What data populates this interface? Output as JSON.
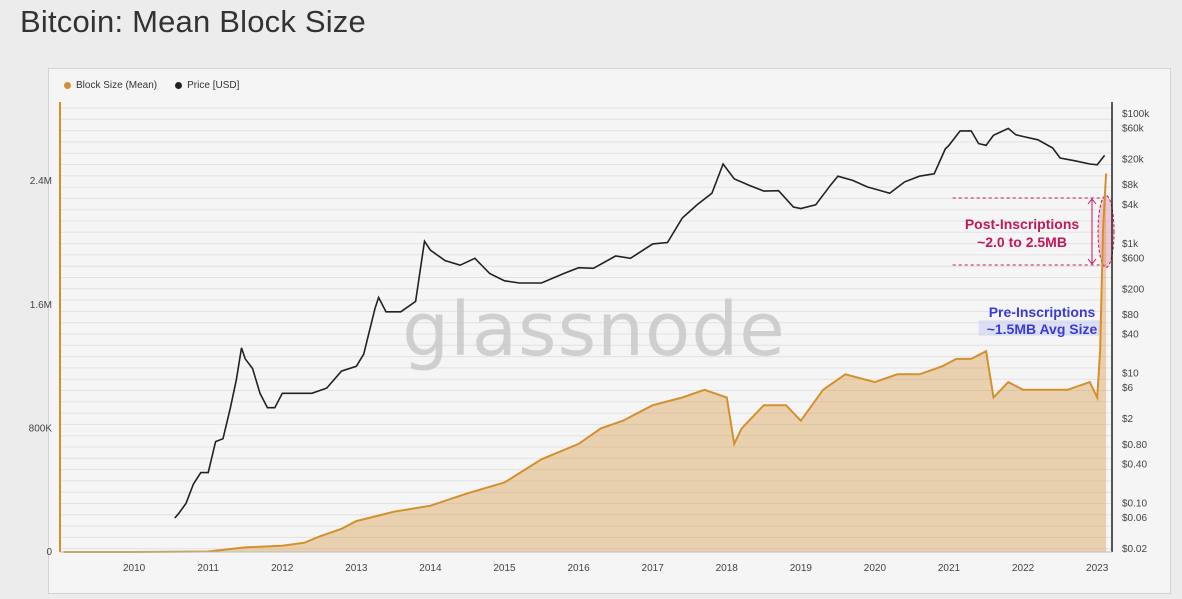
{
  "page": {
    "title": "Bitcoin: Mean Block Size"
  },
  "chart_data": {
    "type": "line",
    "title": "Bitcoin: Mean Block Size",
    "legend": {
      "placement": "top-left",
      "entries": [
        {
          "name": "Block Size (Mean)",
          "color": "#d4902e"
        },
        {
          "name": "Price [USD]",
          "color": "#222222"
        }
      ]
    },
    "watermark": "glassnode",
    "x_axis": {
      "range": [
        2009.0,
        2023.2
      ],
      "ticks": [
        "2010",
        "2011",
        "2012",
        "2013",
        "2014",
        "2015",
        "2016",
        "2017",
        "2018",
        "2019",
        "2020",
        "2021",
        "2022",
        "2023"
      ]
    },
    "y_left": {
      "range": [
        0,
        2900000
      ],
      "ticks": [
        {
          "label": "0",
          "value": 0
        },
        {
          "label": "800K",
          "value": 800000
        },
        {
          "label": "1.6M",
          "value": 1600000
        },
        {
          "label": "2.4M",
          "value": 2400000
        }
      ]
    },
    "y_right": {
      "scale": "log",
      "range": [
        0.02,
        100000
      ],
      "ticks": [
        {
          "label": "$100k",
          "value": 100000
        },
        {
          "label": "$60k",
          "value": 60000
        },
        {
          "label": "$20k",
          "value": 20000
        },
        {
          "label": "$8k",
          "value": 8000
        },
        {
          "label": "$4k",
          "value": 4000
        },
        {
          "label": "$1k",
          "value": 1000
        },
        {
          "label": "$600",
          "value": 600
        },
        {
          "label": "$200",
          "value": 200
        },
        {
          "label": "$80",
          "value": 80
        },
        {
          "label": "$40",
          "value": 40
        },
        {
          "label": "$10",
          "value": 10
        },
        {
          "label": "$6",
          "value": 6
        },
        {
          "label": "$2",
          "value": 2
        },
        {
          "label": "$0.80",
          "value": 0.8
        },
        {
          "label": "$0.40",
          "value": 0.4
        },
        {
          "label": "$0.10",
          "value": 0.1
        },
        {
          "label": "$0.06",
          "value": 0.06
        },
        {
          "label": "$0.02",
          "value": 0.02
        }
      ]
    },
    "grid": true,
    "series": [
      {
        "name": "Price [USD]",
        "color": "#222222",
        "axis": "right",
        "x": [
          2010.55,
          2010.6,
          2010.7,
          2010.8,
          2010.9,
          2011.0,
          2011.1,
          2011.2,
          2011.3,
          2011.38,
          2011.45,
          2011.5,
          2011.6,
          2011.7,
          2011.8,
          2011.9,
          2012.0,
          2012.2,
          2012.4,
          2012.6,
          2012.8,
          2013.0,
          2013.1,
          2013.25,
          2013.3,
          2013.4,
          2013.6,
          2013.8,
          2013.92,
          2014.0,
          2014.2,
          2014.4,
          2014.6,
          2014.8,
          2015.0,
          2015.2,
          2015.5,
          2015.8,
          2016.0,
          2016.2,
          2016.5,
          2016.7,
          2017.0,
          2017.2,
          2017.4,
          2017.6,
          2017.8,
          2017.95,
          2018.1,
          2018.3,
          2018.5,
          2018.7,
          2018.9,
          2019.0,
          2019.2,
          2019.4,
          2019.5,
          2019.7,
          2019.9,
          2020.0,
          2020.2,
          2020.4,
          2020.6,
          2020.8,
          2020.95,
          2021.0,
          2021.15,
          2021.3,
          2021.4,
          2021.5,
          2021.6,
          2021.8,
          2021.9,
          2022.0,
          2022.2,
          2022.4,
          2022.5,
          2022.7,
          2022.9,
          2023.0,
          2023.1
        ],
        "values": [
          0.06,
          0.07,
          0.1,
          0.2,
          0.3,
          0.3,
          0.9,
          1.0,
          3.0,
          8.0,
          25,
          17,
          12,
          5,
          3,
          3,
          5,
          5,
          5,
          6,
          11,
          13,
          20,
          100,
          150,
          90,
          90,
          130,
          1100,
          800,
          550,
          470,
          600,
          350,
          270,
          250,
          250,
          350,
          430,
          420,
          650,
          600,
          1000,
          1050,
          2500,
          4000,
          6000,
          17000,
          10000,
          8000,
          6500,
          6600,
          3700,
          3500,
          4000,
          8000,
          11000,
          9500,
          7500,
          7000,
          6000,
          9000,
          11000,
          12000,
          29000,
          33000,
          55000,
          55000,
          35000,
          33000,
          47000,
          60000,
          48000,
          45000,
          40000,
          30000,
          21000,
          19000,
          17000,
          16500,
          23000
        ]
      },
      {
        "name": "Block Size (Mean)",
        "color": "#d4902e",
        "axis": "left",
        "x": [
          2009.05,
          2010.0,
          2011.0,
          2011.5,
          2012.0,
          2012.3,
          2012.5,
          2012.8,
          2013.0,
          2013.5,
          2014.0,
          2014.5,
          2015.0,
          2015.5,
          2016.0,
          2016.3,
          2016.6,
          2017.0,
          2017.4,
          2017.7,
          2018.0,
          2018.1,
          2018.2,
          2018.5,
          2018.8,
          2019.0,
          2019.3,
          2019.6,
          2020.0,
          2020.3,
          2020.6,
          2020.9,
          2021.1,
          2021.3,
          2021.5,
          2021.6,
          2021.8,
          2022.0,
          2022.3,
          2022.6,
          2022.9,
          2023.0,
          2023.04,
          2023.08,
          2023.12
        ],
        "values": [
          0,
          0,
          3000,
          30000,
          40000,
          60000,
          100000,
          150000,
          200000,
          260000,
          300000,
          380000,
          450000,
          600000,
          700000,
          800000,
          850000,
          950000,
          1000000,
          1050000,
          1000000,
          700000,
          800000,
          950000,
          950000,
          850000,
          1050000,
          1150000,
          1100000,
          1150000,
          1150000,
          1200000,
          1250000,
          1250000,
          1300000,
          1000000,
          1100000,
          1050000,
          1050000,
          1050000,
          1100000,
          1000000,
          1300000,
          2100000,
          2450000
        ]
      }
    ],
    "annotations": {
      "post": {
        "lines": [
          "Post-Inscriptions",
          "~2.0 to 2.5MB"
        ],
        "color": "#c2185b",
        "range": [
          2000000,
          2500000
        ]
      },
      "pre": {
        "lines": [
          "Pre-Inscriptions",
          "~1.5MB Avg Size"
        ],
        "color": "#3b3bd6",
        "range": [
          1400000,
          1500000
        ]
      }
    }
  }
}
